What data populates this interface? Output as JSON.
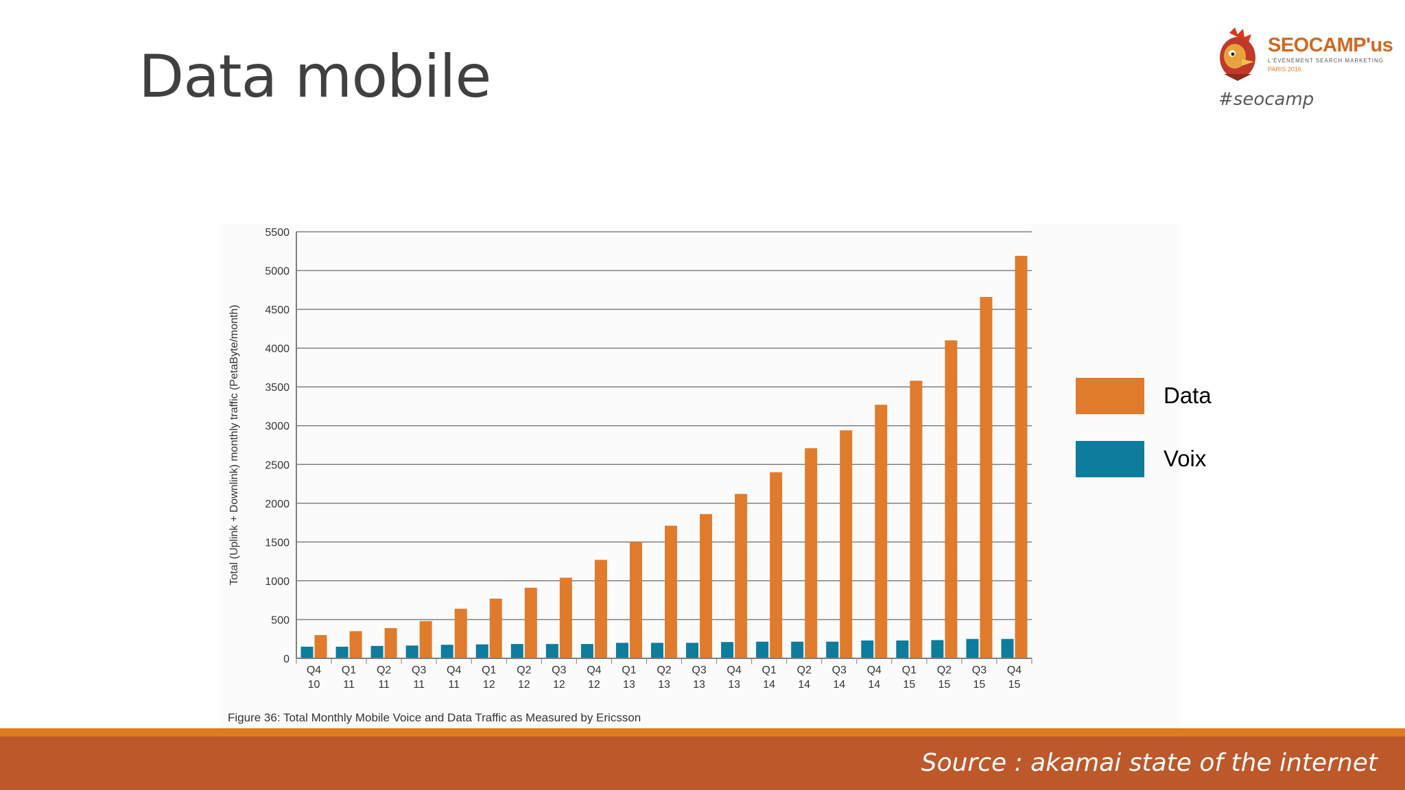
{
  "slide": {
    "title": "Data mobile",
    "hashtag": "#seocamp",
    "source": "Source : akamai state of the internet"
  },
  "logo": {
    "name": "SEOCAMP'us",
    "tagline": "L'ÉVÉNEMENT SEARCH MARKETING",
    "city": "PARIS 2016"
  },
  "legend": [
    {
      "label": "Data",
      "color": "#e07b2c"
    },
    {
      "label": "Voix",
      "color": "#0e7c9c"
    }
  ],
  "chart_data": {
    "type": "bar",
    "title": "",
    "caption": "Figure 36: Total Monthly Mobile Voice and Data Traffic as Measured by Ericsson",
    "ylabel": "Total (Uplink + Downlink) monthly traffic (PetaByte/month)",
    "xlabel": "",
    "ylim": [
      0,
      5500
    ],
    "yticks": [
      0,
      500,
      1000,
      1500,
      2000,
      2500,
      3000,
      3500,
      4000,
      4500,
      5000,
      5500
    ],
    "grid": true,
    "legend_position": "right",
    "categories": [
      [
        "Q4",
        "10"
      ],
      [
        "Q1",
        "11"
      ],
      [
        "Q2",
        "11"
      ],
      [
        "Q3",
        "11"
      ],
      [
        "Q4",
        "11"
      ],
      [
        "Q1",
        "12"
      ],
      [
        "Q2",
        "12"
      ],
      [
        "Q3",
        "12"
      ],
      [
        "Q4",
        "12"
      ],
      [
        "Q1",
        "13"
      ],
      [
        "Q2",
        "13"
      ],
      [
        "Q3",
        "13"
      ],
      [
        "Q4",
        "13"
      ],
      [
        "Q1",
        "14"
      ],
      [
        "Q2",
        "14"
      ],
      [
        "Q3",
        "14"
      ],
      [
        "Q4",
        "14"
      ],
      [
        "Q1",
        "15"
      ],
      [
        "Q2",
        "15"
      ],
      [
        "Q3",
        "15"
      ],
      [
        "Q4",
        "15"
      ]
    ],
    "series": [
      {
        "name": "Voix",
        "color": "#0e7c9c",
        "values": [
          150,
          150,
          160,
          165,
          175,
          180,
          185,
          185,
          185,
          200,
          200,
          200,
          210,
          215,
          215,
          215,
          230,
          230,
          235,
          250,
          250
        ]
      },
      {
        "name": "Data",
        "color": "#e07b2c",
        "values": [
          300,
          350,
          390,
          480,
          640,
          770,
          910,
          1040,
          1270,
          1500,
          1710,
          1860,
          2120,
          2400,
          2710,
          2940,
          3270,
          3580,
          4100,
          4660,
          5190
        ]
      }
    ]
  }
}
